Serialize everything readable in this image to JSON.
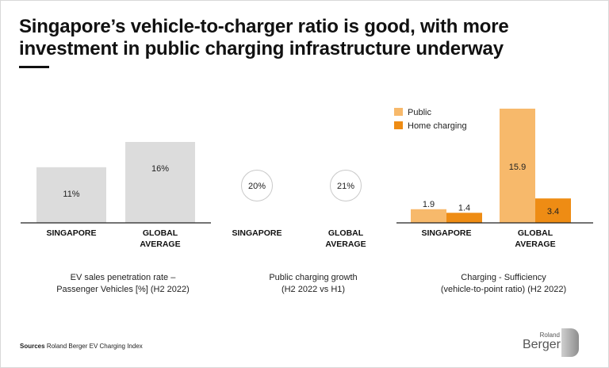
{
  "title": "Singapore’s vehicle-to-charger ratio is good, with more investment in public charging infrastructure underway",
  "sources_label": "Sources",
  "sources_text": "Roland Berger EV Charging Index",
  "logo": {
    "small": "Roland",
    "big": "Berger"
  },
  "colors": {
    "gray": "#dcdcdc",
    "public": "#f7b96b",
    "home": "#ee8c14",
    "axis": "#222222"
  },
  "chart_data": [
    {
      "type": "bar",
      "categories": [
        "SINGAPORE",
        "GLOBAL AVERAGE"
      ],
      "values": [
        11,
        16
      ],
      "value_labels": [
        "11%",
        "16%"
      ],
      "title": "EV sales penetration rate – Passenger Vehicles [%] (H2 2022)",
      "caption_lines": [
        "EV sales penetration rate –",
        "Passenger Vehicles [%] (H2 2022)"
      ]
    },
    {
      "type": "bubble",
      "categories": [
        "SINGAPORE",
        "GLOBAL AVERAGE"
      ],
      "values": [
        20,
        21
      ],
      "value_labels": [
        "20%",
        "21%"
      ],
      "title": "Public charging growth (H2 2022 vs H1)",
      "caption_lines": [
        "Public charging growth",
        "(H2 2022 vs H1)"
      ]
    },
    {
      "type": "bar",
      "categories": [
        "SINGAPORE",
        "GLOBAL AVERAGE"
      ],
      "series": [
        {
          "name": "Public",
          "values": [
            1.9,
            15.9
          ],
          "labels": [
            "1.9",
            "15.9"
          ]
        },
        {
          "name": "Home charging",
          "values": [
            1.4,
            3.4
          ],
          "labels": [
            "1.4",
            "3.4"
          ]
        }
      ],
      "title": "Charging - Sufficiency (vehicle-to-point ratio) (H2 2022)",
      "caption_lines": [
        "Charging - Sufficiency",
        "(vehicle-to-point ratio) (H2 2022)"
      ],
      "legend": "top-left"
    }
  ]
}
